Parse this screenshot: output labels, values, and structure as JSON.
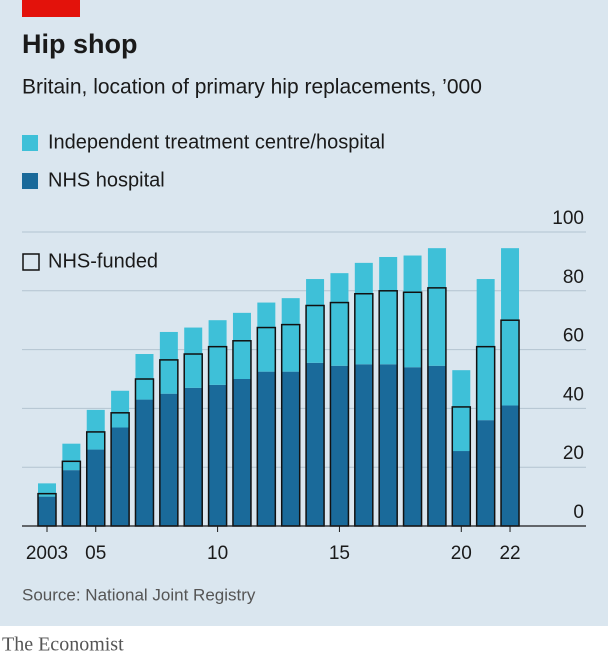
{
  "chart_data": {
    "type": "bar",
    "stacked": true,
    "title": "Hip shop",
    "subtitle": "Britain, location of primary hip replacements, ’000",
    "source": "Source: National Joint Registry",
    "brand": "The Economist",
    "categories": [
      "2003",
      null,
      "05",
      null,
      null,
      null,
      null,
      "10",
      null,
      null,
      null,
      null,
      "15",
      null,
      null,
      null,
      null,
      "20",
      null,
      "22"
    ],
    "series": [
      {
        "name": "NHS hospital",
        "color": "#1a6a9a",
        "values": [
          10,
          19,
          26,
          33.5,
          43,
          45,
          47,
          48,
          50,
          52.5,
          52.5,
          55.5,
          54.5,
          55,
          55,
          54,
          54.5,
          25.5,
          36,
          41
        ]
      },
      {
        "name": "Independent treatment centre/hospital",
        "color": "#3ec0d8",
        "values": [
          4.5,
          9,
          13.5,
          12.5,
          15.5,
          21,
          20.5,
          22,
          22.5,
          23.5,
          25,
          28.5,
          31.5,
          34.5,
          36.5,
          38,
          40,
          27.5,
          48,
          53.5
        ]
      }
    ],
    "outline_series": {
      "name": "NHS-funded",
      "color": "#111111",
      "values": [
        11,
        22,
        32,
        38.5,
        50,
        56.5,
        58.5,
        61,
        63,
        67.5,
        68.5,
        75,
        76,
        79,
        80,
        79.5,
        81,
        40.5,
        61,
        70
      ]
    },
    "ylim": [
      0,
      100
    ],
    "yticks": [
      0,
      20,
      40,
      60,
      80,
      100
    ],
    "grid": true
  }
}
